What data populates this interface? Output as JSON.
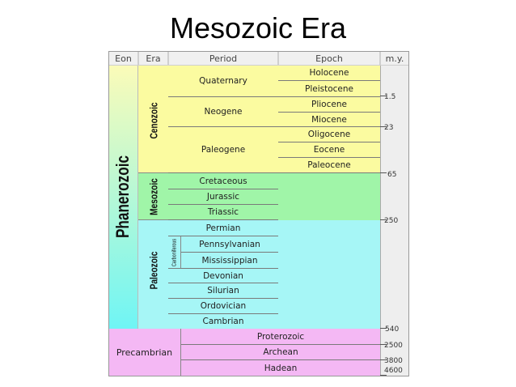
{
  "title": "Mesozoic Era",
  "headers": {
    "eon": "Eon",
    "era": "Era",
    "period": "Period",
    "epoch": "Epoch",
    "my": "m.y."
  },
  "eons": {
    "phanerozoic": "Phanerozoic",
    "precambrian": "Precambrian"
  },
  "eras": {
    "cenozoic": "Cenozoic",
    "mesozoic": "Mesozoic",
    "paleozoic": "Paleozoic"
  },
  "carboniferous": "Carboniferous",
  "periods": {
    "quaternary": "Quaternary",
    "neogene": "Neogene",
    "paleogene": "Paleogene",
    "cretaceous": "Cretaceous",
    "jurassic": "Jurassic",
    "triassic": "Triassic",
    "permian": "Permian",
    "pennsylvanian": "Pennsylvanian",
    "mississippian": "Mississippian",
    "devonian": "Devonian",
    "silurian": "Silurian",
    "ordovician": "Ordovician",
    "cambrian": "Cambrian"
  },
  "precambrian_divisions": {
    "proterozoic": "Proterozoic",
    "archean": "Archean",
    "hadean": "Hadean"
  },
  "epochs": {
    "holocene": "Holocene",
    "pleistocene": "Pleistocene",
    "pliocene": "Pliocene",
    "miocene": "Miocene",
    "oligocene": "Oligocene",
    "eocene": "Eocene",
    "paleocene": "Paleocene"
  },
  "ages": {
    "a1": "1.5",
    "a2": "23",
    "a3": "65",
    "a4": "250",
    "a5": "540",
    "a6": "2500",
    "a7": "3800",
    "a8": "4600"
  },
  "colors": {
    "cenozoic": "#fbfba0",
    "mesozoic": "#a0f5a8",
    "paleozoic": "#a6f6f6",
    "precambrian": "#f4b8f4",
    "phanerozoic_top": "#fbfbb8",
    "phanerozoic_bottom": "#6ff5f5"
  }
}
